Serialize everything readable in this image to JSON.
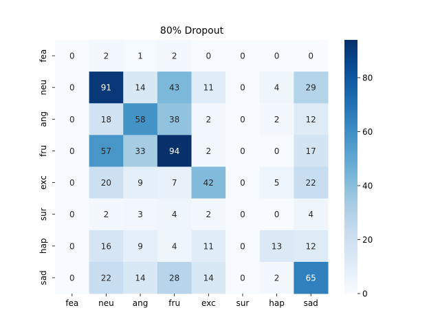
{
  "chart_data": {
    "type": "heatmap",
    "title": "80% Dropout",
    "xlabel": "",
    "ylabel": "",
    "x_categories": [
      "fea",
      "neu",
      "ang",
      "fru",
      "exc",
      "sur",
      "hap",
      "sad"
    ],
    "y_categories": [
      "fea",
      "neu",
      "ang",
      "fru",
      "exc",
      "sur",
      "hap",
      "sad"
    ],
    "values": [
      [
        0,
        2,
        1,
        2,
        0,
        0,
        0,
        0
      ],
      [
        0,
        91,
        14,
        43,
        11,
        0,
        4,
        29
      ],
      [
        0,
        18,
        58,
        38,
        2,
        0,
        2,
        12
      ],
      [
        0,
        57,
        33,
        94,
        2,
        0,
        0,
        17
      ],
      [
        0,
        20,
        9,
        7,
        42,
        0,
        5,
        22
      ],
      [
        0,
        2,
        3,
        4,
        2,
        0,
        0,
        4
      ],
      [
        0,
        16,
        9,
        4,
        11,
        0,
        13,
        12
      ],
      [
        0,
        22,
        14,
        28,
        14,
        0,
        2,
        65
      ]
    ],
    "colormap": "Blues",
    "vmin": 0,
    "vmax": 94,
    "colorbar_ticks": [
      0,
      20,
      40,
      60,
      80
    ],
    "grid": false,
    "colors": {
      "low": "#f7fbff",
      "high": "#08306b",
      "text_dark": "#262626",
      "text_light": "#ffffff"
    }
  }
}
